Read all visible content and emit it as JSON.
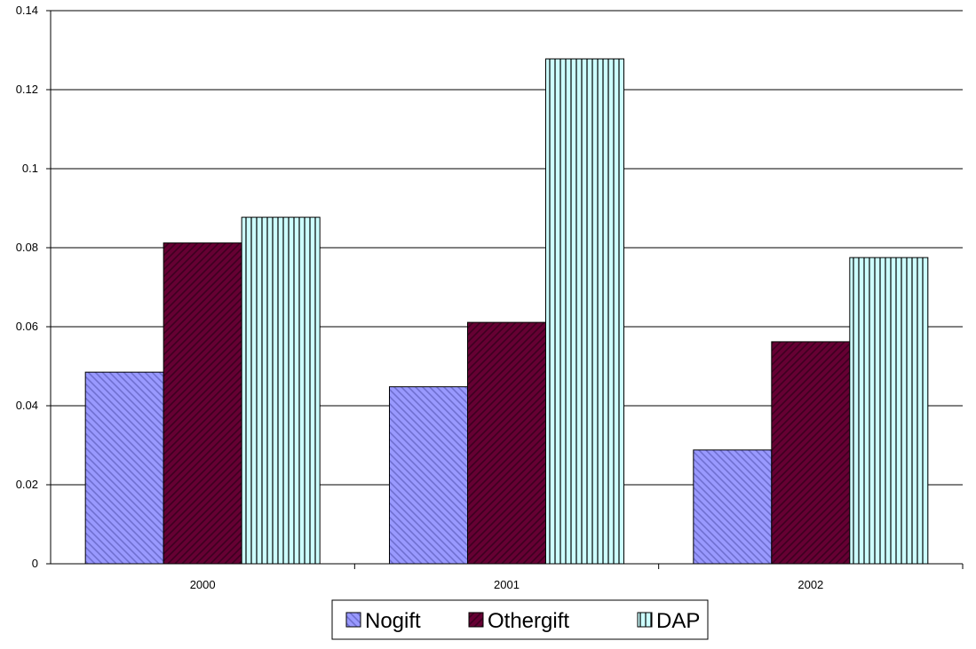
{
  "chart_data": {
    "type": "bar",
    "categories": [
      "2000",
      "2001",
      "2002"
    ],
    "series": [
      {
        "name": "Nogift",
        "values": [
          0.0485,
          0.0448,
          0.0288
        ],
        "color": "#9999ff",
        "pattern": "hatch-down"
      },
      {
        "name": "Othergift",
        "values": [
          0.0812,
          0.0611,
          0.0562
        ],
        "color": "#660033",
        "pattern": "hatch-up"
      },
      {
        "name": "DAP",
        "values": [
          0.0877,
          0.1278,
          0.0775
        ],
        "color": "#ccffff",
        "pattern": "vertical-stripes"
      }
    ],
    "ylim": [
      0,
      0.14
    ],
    "yticks": [
      "0",
      "0.02",
      "0.04",
      "0.06",
      "0.08",
      "0.1",
      "0.12",
      "0.14"
    ],
    "grid": true,
    "legend": "bottom"
  }
}
